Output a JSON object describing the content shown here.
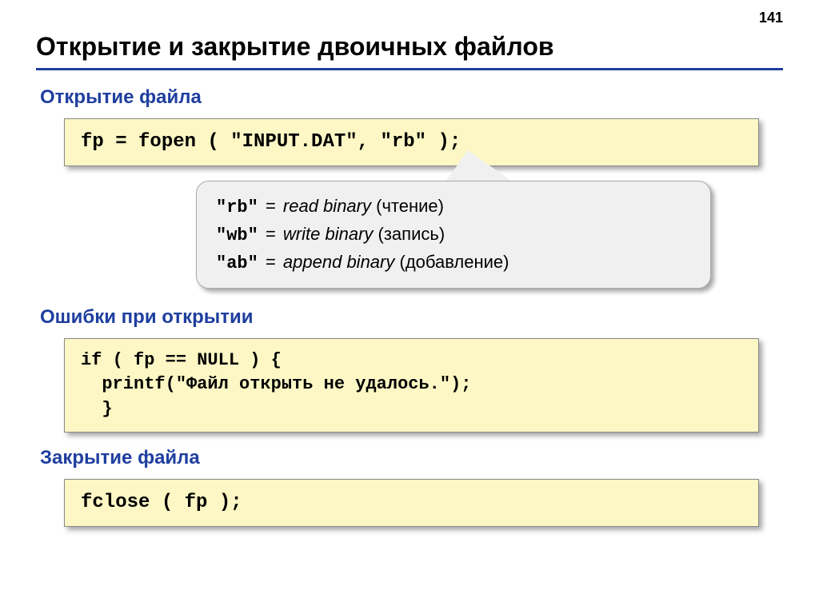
{
  "page_number": "141",
  "title": "Открытие и закрытие двоичных файлов",
  "colors": {
    "heading_blue": "#1f3f9f",
    "code_bg": "#fcf7c4",
    "callout_bg": "#f0f0f0",
    "text_black": "#000000",
    "shadow": "rgba(0,0,0,0.35)"
  },
  "sections": {
    "open": {
      "heading": "Открытие файла",
      "code": "fp = fopen ( \"INPUT.DAT\", \"rb\" );"
    },
    "callout": {
      "rows": [
        {
          "mode": "\"rb\"",
          "eq": "=",
          "desc_en": "read binary",
          "desc_ru": " (чтение)"
        },
        {
          "mode": "\"wb\"",
          "eq": "=",
          "desc_en": "write binary",
          "desc_ru": " (запись)"
        },
        {
          "mode": "\"ab\"",
          "eq": "=",
          "desc_en": "append binary",
          "desc_ru": " (добавление)"
        }
      ]
    },
    "errors": {
      "heading": "Ошибки при открытии",
      "code": "if ( fp == NULL ) {\n  printf(\"Файл открыть не удалось.\");\n  }"
    },
    "close": {
      "heading": "Закрытие файла",
      "code": "fclose ( fp );"
    }
  },
  "typography": {
    "title_fontsize": 32,
    "heading_fontsize": 24,
    "code_fontsize": 24,
    "callout_fontsize": 22
  }
}
